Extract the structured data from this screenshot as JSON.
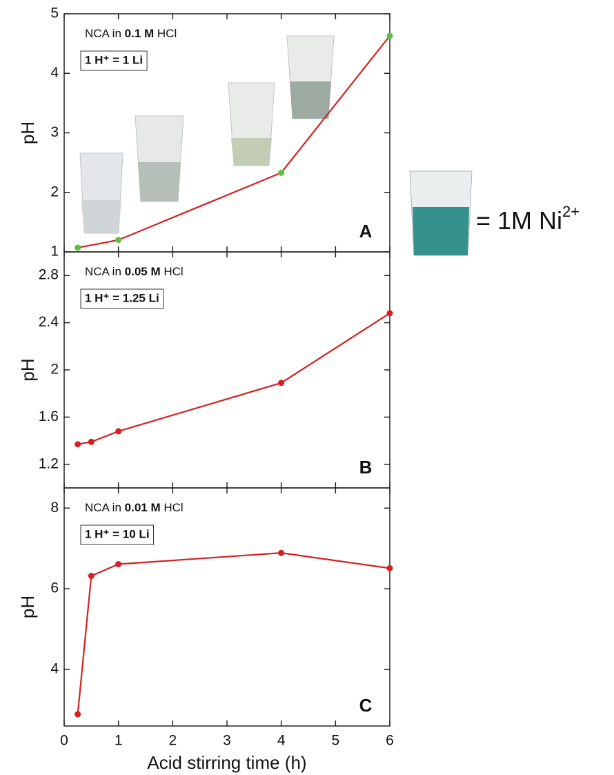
{
  "chart_data": [
    {
      "type": "line",
      "annotation": [
        "NCA in ",
        "0.1 M",
        " HCl"
      ],
      "ratio": "1 H⁺ = 1 Li",
      "panel_label": "A",
      "ylabel": "pH",
      "side_label": [
        "= 1M Ni",
        "2+"
      ],
      "x": [
        0.25,
        1,
        4,
        6
      ],
      "series": [
        {
          "color": "#d42020",
          "marker_color": "#5cc040",
          "values": [
            1.07,
            1.2,
            2.33,
            4.63
          ]
        }
      ],
      "xlim": [
        0,
        6
      ],
      "ylim": [
        1,
        5
      ],
      "yticks": [
        1,
        2,
        3,
        4,
        5
      ]
    },
    {
      "type": "line",
      "annotation": [
        "NCA in ",
        "0.05 M",
        " HCl"
      ],
      "ratio": "1 H⁺ = 1.25 Li",
      "panel_label": "B",
      "ylabel": "pH",
      "x": [
        0.25,
        0.5,
        1,
        4,
        6
      ],
      "series": [
        {
          "color": "#d42020",
          "marker_color": "#d42020",
          "values": [
            1.37,
            1.39,
            1.48,
            1.89,
            2.48
          ]
        }
      ],
      "xlim": [
        0,
        6
      ],
      "ylim": [
        1,
        3
      ],
      "yticks": [
        1.2,
        1.6,
        2,
        2.4,
        2.8
      ]
    },
    {
      "type": "line",
      "annotation": [
        "NCA in ",
        "0.01 M",
        " HCl"
      ],
      "ratio": "1 H⁺ = 10 Li",
      "panel_label": "C",
      "ylabel": "pH",
      "xlabel": "Acid stirring time (h)",
      "x": [
        0.25,
        0.5,
        1,
        4,
        6
      ],
      "series": [
        {
          "color": "#d42020",
          "marker_color": "#d42020",
          "values": [
            2.89,
            6.32,
            6.61,
            6.89,
            6.51
          ]
        }
      ],
      "xlim": [
        0,
        6
      ],
      "ylim": [
        2.6,
        8.5
      ],
      "yticks": [
        4,
        6,
        8
      ],
      "xticks": [
        0,
        1,
        2,
        3,
        4,
        5,
        6
      ]
    }
  ]
}
